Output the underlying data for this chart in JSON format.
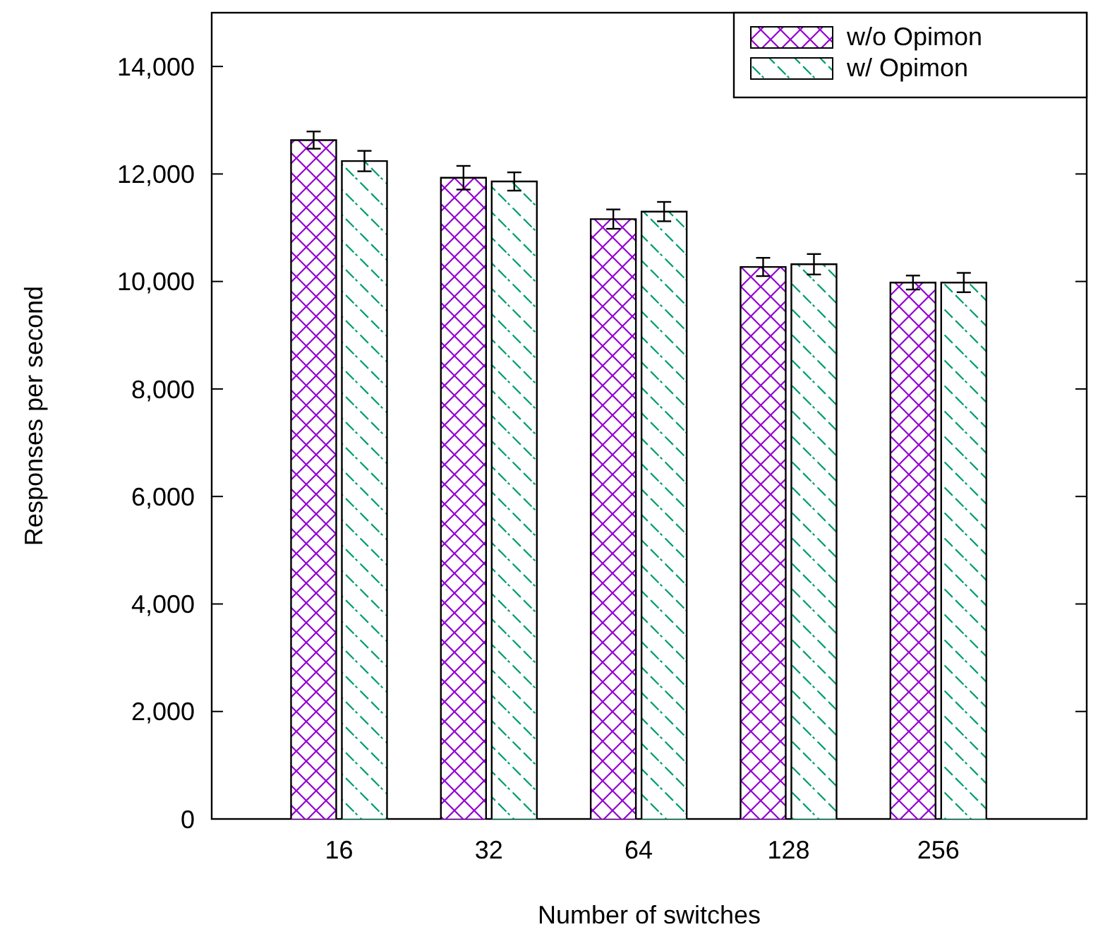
{
  "chart_data": {
    "type": "bar",
    "xlabel": "Number of switches",
    "ylabel": "Responses per second",
    "categories": [
      "16",
      "32",
      "64",
      "128",
      "256"
    ],
    "series": [
      {
        "name": "w/o Opimon",
        "color": "#9400d3",
        "values": [
          12630,
          11930,
          11160,
          10270,
          9980
        ],
        "errors": [
          160,
          220,
          180,
          170,
          130
        ]
      },
      {
        "name": "w/ Opimon",
        "color": "#009e73",
        "values": [
          12240,
          11860,
          11300,
          10320,
          9980
        ],
        "errors": [
          190,
          170,
          180,
          190,
          180
        ]
      }
    ],
    "ylim": [
      0,
      15000
    ],
    "yticks": [
      {
        "value": 0,
        "label": "0"
      },
      {
        "value": 2000,
        "label": "2,000"
      },
      {
        "value": 4000,
        "label": "4,000"
      },
      {
        "value": 6000,
        "label": "6,000"
      },
      {
        "value": 8000,
        "label": "8,000"
      },
      {
        "value": 10000,
        "label": "10,000"
      },
      {
        "value": 12000,
        "label": "12,000"
      },
      {
        "value": 14000,
        "label": "14,000"
      }
    ],
    "legend": "top right",
    "grid": false
  }
}
